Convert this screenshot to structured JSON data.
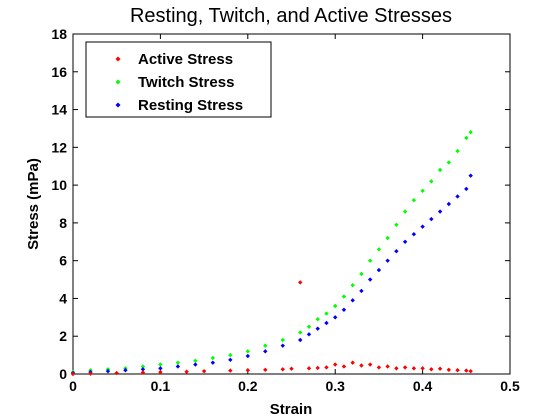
{
  "chart_data": {
    "type": "scatter",
    "title": "Resting, Twitch, and Active Stresses",
    "xlabel": "Strain",
    "ylabel": "Stress (mPa)",
    "xlim": [
      0,
      0.5
    ],
    "ylim": [
      0,
      18
    ],
    "xticks": [
      "0",
      "0.1",
      "0.2",
      "0.3",
      "0.4",
      "0.5"
    ],
    "yticks": [
      "0",
      "2",
      "4",
      "6",
      "8",
      "10",
      "12",
      "14",
      "16",
      "18"
    ],
    "grid": false,
    "legend_position": "top-left",
    "series": [
      {
        "name": "Active Stress",
        "color": "#ff0000",
        "points": [
          [
            0.0,
            0.0
          ],
          [
            0.02,
            0.02
          ],
          [
            0.05,
            0.05
          ],
          [
            0.08,
            0.08
          ],
          [
            0.1,
            0.1
          ],
          [
            0.13,
            0.12
          ],
          [
            0.15,
            0.15
          ],
          [
            0.18,
            0.18
          ],
          [
            0.2,
            0.2
          ],
          [
            0.22,
            0.22
          ],
          [
            0.24,
            0.25
          ],
          [
            0.25,
            0.28
          ],
          [
            0.26,
            4.85
          ],
          [
            0.27,
            0.3
          ],
          [
            0.28,
            0.32
          ],
          [
            0.29,
            0.35
          ],
          [
            0.3,
            0.5
          ],
          [
            0.31,
            0.4
          ],
          [
            0.32,
            0.6
          ],
          [
            0.33,
            0.45
          ],
          [
            0.34,
            0.5
          ],
          [
            0.35,
            0.35
          ],
          [
            0.36,
            0.4
          ],
          [
            0.37,
            0.3
          ],
          [
            0.38,
            0.35
          ],
          [
            0.39,
            0.3
          ],
          [
            0.4,
            0.3
          ],
          [
            0.41,
            0.25
          ],
          [
            0.42,
            0.28
          ],
          [
            0.43,
            0.22
          ],
          [
            0.44,
            0.2
          ],
          [
            0.45,
            0.18
          ],
          [
            0.455,
            0.15
          ]
        ]
      },
      {
        "name": "Twitch Stress",
        "color": "#00ff00",
        "points": [
          [
            0.0,
            0.1
          ],
          [
            0.02,
            0.2
          ],
          [
            0.04,
            0.25
          ],
          [
            0.06,
            0.3
          ],
          [
            0.08,
            0.4
          ],
          [
            0.1,
            0.5
          ],
          [
            0.12,
            0.6
          ],
          [
            0.14,
            0.7
          ],
          [
            0.16,
            0.85
          ],
          [
            0.18,
            1.0
          ],
          [
            0.2,
            1.2
          ],
          [
            0.22,
            1.5
          ],
          [
            0.24,
            1.8
          ],
          [
            0.26,
            2.2
          ],
          [
            0.27,
            2.5
          ],
          [
            0.28,
            2.9
          ],
          [
            0.29,
            3.2
          ],
          [
            0.3,
            3.6
          ],
          [
            0.31,
            4.1
          ],
          [
            0.32,
            4.7
          ],
          [
            0.33,
            5.3
          ],
          [
            0.34,
            6.0
          ],
          [
            0.35,
            6.6
          ],
          [
            0.36,
            7.2
          ],
          [
            0.37,
            7.9
          ],
          [
            0.38,
            8.6
          ],
          [
            0.39,
            9.2
          ],
          [
            0.4,
            9.7
          ],
          [
            0.41,
            10.2
          ],
          [
            0.42,
            10.8
          ],
          [
            0.43,
            11.2
          ],
          [
            0.44,
            11.8
          ],
          [
            0.45,
            12.5
          ],
          [
            0.455,
            12.8
          ]
        ]
      },
      {
        "name": "Resting Stress",
        "color": "#0000ff",
        "points": [
          [
            0.0,
            0.05
          ],
          [
            0.02,
            0.1
          ],
          [
            0.04,
            0.15
          ],
          [
            0.06,
            0.2
          ],
          [
            0.08,
            0.25
          ],
          [
            0.1,
            0.3
          ],
          [
            0.12,
            0.4
          ],
          [
            0.14,
            0.5
          ],
          [
            0.16,
            0.6
          ],
          [
            0.18,
            0.75
          ],
          [
            0.2,
            0.95
          ],
          [
            0.22,
            1.2
          ],
          [
            0.24,
            1.5
          ],
          [
            0.26,
            1.8
          ],
          [
            0.27,
            2.1
          ],
          [
            0.28,
            2.4
          ],
          [
            0.29,
            2.7
          ],
          [
            0.3,
            3.0
          ],
          [
            0.31,
            3.4
          ],
          [
            0.32,
            3.9
          ],
          [
            0.33,
            4.4
          ],
          [
            0.34,
            5.0
          ],
          [
            0.35,
            5.5
          ],
          [
            0.36,
            6.0
          ],
          [
            0.37,
            6.5
          ],
          [
            0.38,
            7.0
          ],
          [
            0.39,
            7.4
          ],
          [
            0.4,
            7.8
          ],
          [
            0.41,
            8.2
          ],
          [
            0.42,
            8.6
          ],
          [
            0.43,
            9.0
          ],
          [
            0.44,
            9.4
          ],
          [
            0.45,
            9.8
          ],
          [
            0.455,
            10.5
          ]
        ]
      }
    ]
  }
}
